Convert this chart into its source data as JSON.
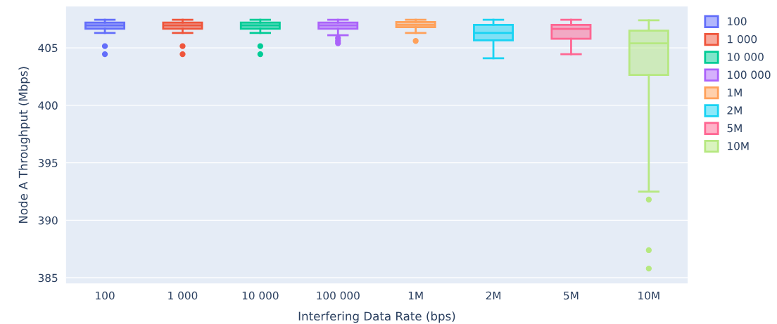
{
  "chart_data": {
    "type": "box",
    "xlabel": "Interfering Data Rate (bps)",
    "ylabel": "Node A Throughput (Mbps)",
    "categories": [
      "100",
      "1 000",
      "10 000",
      "100 000",
      "1M",
      "2M",
      "5M",
      "10M"
    ],
    "ylim": [
      384.5,
      408.6
    ],
    "yticks": [
      385,
      390,
      395,
      400,
      405
    ],
    "grid": "y",
    "legend": "top right",
    "series": [
      {
        "name": "100",
        "color": "#636efa",
        "boxes": [
          {
            "low": 406.3,
            "q1": 406.67,
            "median": 406.95,
            "q3": 407.2,
            "high": 407.45,
            "outliers": [
              405.15,
              404.45
            ]
          },
          null,
          null,
          null,
          null,
          null,
          null,
          null
        ]
      },
      {
        "name": "1 000",
        "color": "#ef553b",
        "boxes": [
          null,
          {
            "low": 406.3,
            "q1": 406.67,
            "median": 406.95,
            "q3": 407.2,
            "high": 407.45,
            "outliers": [
              405.15,
              404.45
            ]
          },
          null,
          null,
          null,
          null,
          null,
          null
        ]
      },
      {
        "name": "10 000",
        "color": "#00cc96",
        "boxes": [
          null,
          null,
          {
            "low": 406.3,
            "q1": 406.67,
            "median": 406.95,
            "q3": 407.2,
            "high": 407.45,
            "outliers": [
              405.15,
              404.45
            ]
          },
          null,
          null,
          null,
          null,
          null
        ]
      },
      {
        "name": "100 000",
        "color": "#ab63fa",
        "boxes": [
          null,
          null,
          null,
          {
            "low": 406.1,
            "q1": 406.67,
            "median": 406.95,
            "q3": 407.2,
            "high": 407.45,
            "outliers": [
              405.85,
              405.6,
              405.4
            ]
          },
          null,
          null,
          null,
          null
        ]
      },
      {
        "name": "1M",
        "color": "#ffa15a",
        "boxes": [
          null,
          null,
          null,
          null,
          {
            "low": 406.3,
            "q1": 406.8,
            "median": 407.0,
            "q3": 407.25,
            "high": 407.45,
            "outliers": [
              405.6
            ]
          },
          null,
          null,
          null
        ]
      },
      {
        "name": "2M",
        "color": "#19d3f3",
        "boxes": [
          null,
          null,
          null,
          null,
          null,
          {
            "low": 404.1,
            "q1": 405.65,
            "median": 406.3,
            "q3": 407.0,
            "high": 407.45
          },
          null,
          null
        ]
      },
      {
        "name": "5M",
        "color": "#ff6692",
        "boxes": [
          null,
          null,
          null,
          null,
          null,
          null,
          {
            "low": 404.45,
            "q1": 405.8,
            "median": 406.65,
            "q3": 407.0,
            "high": 407.45
          },
          null
        ]
      },
      {
        "name": "10M",
        "color": "#b6e880",
        "boxes": [
          null,
          null,
          null,
          null,
          null,
          null,
          null,
          {
            "low": 392.5,
            "q1": 402.65,
            "median": 405.4,
            "q3": 406.5,
            "high": 407.4,
            "outliers": [
              391.8,
              387.4,
              385.8
            ]
          }
        ]
      }
    ]
  }
}
